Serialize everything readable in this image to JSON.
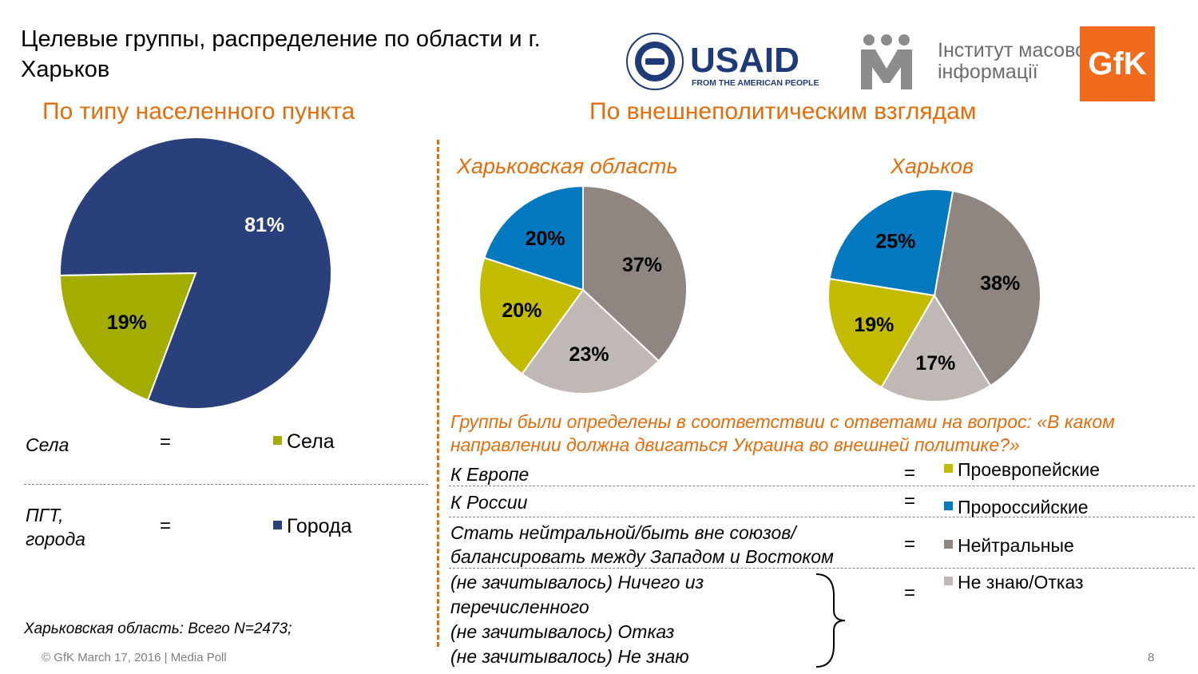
{
  "title": "Целевые группы, распределение по области и г. Харьков",
  "left_section_title": "По типу населенного пункта",
  "right_section_title": "По внешнеполитическим взглядам",
  "chart_data": [
    {
      "type": "pie",
      "title": "",
      "labels": [
        "Города",
        "Села"
      ],
      "values": [
        81,
        19
      ],
      "colors": [
        "#2a407c",
        "#a3ad00"
      ]
    },
    {
      "type": "pie",
      "title": "Харьковская область",
      "labels": [
        "Нейтральные",
        "Не знаю/Отказ",
        "Проевропейские",
        "Пророссийские"
      ],
      "values": [
        37,
        23,
        20,
        20
      ],
      "colors": [
        "#8f8682",
        "#bfb8b4",
        "#c2bb00",
        "#0579bf"
      ]
    },
    {
      "type": "pie",
      "title": "Харьков",
      "labels": [
        "Нейтральные",
        "Не знаю/Отказ",
        "Проевропейские",
        "Пророссийские"
      ],
      "values": [
        38,
        17,
        19,
        25
      ],
      "colors": [
        "#8f8682",
        "#bfb8b4",
        "#c2bb00",
        "#0579bf"
      ]
    }
  ],
  "left_legend": [
    {
      "term": "Села",
      "eq": "=",
      "label": "Села",
      "color": "#a3ad00"
    },
    {
      "term_line1": "ПГТ,",
      "term_line2": "города",
      "eq": "=",
      "label": "Города",
      "color": "#2a407c"
    }
  ],
  "question_note": "Группы были определены в соответствии с ответами на вопрос: «В каком направлении должна двигаться Украина во внешней политике?»",
  "right_legend": [
    {
      "term": "К Европе",
      "eq": "=",
      "label": "Проевропейские",
      "color": "#c2bb00"
    },
    {
      "term": "К России",
      "eq": "=",
      "label": "Пророссийские",
      "color": "#0579bf"
    },
    {
      "term_line1": "Стать нейтральной/быть вне союзов/",
      "term_line2": "балансировать между Западом и Востоком",
      "eq": "=",
      "label": "Нейтральные",
      "color": "#8f8682"
    },
    {
      "terms": [
        "(не зачитывалось) Ничего из",
        "перечисленного",
        "(не зачитывалось) Отказ",
        "(не зачитывалось) Не знаю"
      ],
      "eq": "=",
      "label": "Не знаю/Отказ",
      "color": "#bfb8b4"
    }
  ],
  "sample_note": "Харьковская область: Всего N=2473;",
  "footer": "© GfK March 17, 2016 | Media Poll",
  "page_number": "8",
  "logos": {
    "usaid_main": "USAID",
    "usaid_sub": "FROM THE AMERICAN PEOPLE",
    "usaid_seal": "U.S. AGENCY INTERNATIONAL DEVELOPMENT",
    "imi_line1": "Інститут масової",
    "imi_line2": "інформації",
    "gfk": "GfK"
  }
}
